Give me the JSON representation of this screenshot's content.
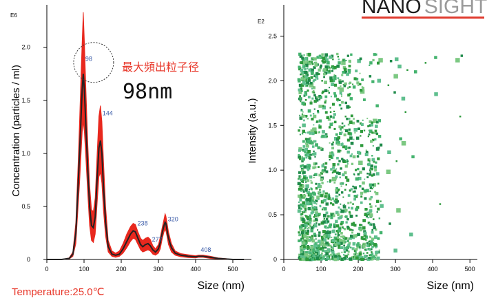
{
  "brand": {
    "part1": "NANO",
    "part2": "SIGHT",
    "line_color": "#e03a2e"
  },
  "temperature": "Temperature:25.0℃",
  "annotation": {
    "label": "最大頻出粒子径",
    "size": "98nm",
    "color": "#e8392c"
  },
  "chart_data": [
    {
      "type": "line",
      "exponent_label": "E6",
      "xlabel": "Size (nm)",
      "ylabel": "Concentration (particles / ml)",
      "xlim": [
        0,
        550
      ],
      "ylim": [
        0,
        2.4
      ],
      "x_ticks": [
        "0",
        "100",
        "200",
        "300",
        "400",
        "500"
      ],
      "y_ticks": [
        "0",
        "0.5",
        "1.0",
        "1.5",
        "2.0"
      ],
      "series": [
        {
          "role": "mean",
          "color": "#222222",
          "x": [
            0,
            40,
            60,
            70,
            78,
            84,
            88,
            92,
            95,
            98,
            101,
            105,
            110,
            115,
            120,
            125,
            130,
            135,
            140,
            144,
            148,
            152,
            158,
            165,
            175,
            185,
            195,
            205,
            215,
            225,
            232,
            238,
            245,
            252,
            258,
            265,
            272,
            278,
            285,
            292,
            300,
            305,
            310,
            315,
            318,
            320,
            323,
            327,
            335,
            345,
            360,
            380,
            400,
            408,
            420,
            440,
            460,
            480,
            500,
            530
          ],
          "y": [
            0,
            0,
            0.01,
            0.05,
            0.25,
            0.7,
            1.0,
            1.35,
            1.6,
            1.75,
            1.6,
            1.25,
            0.85,
            0.5,
            0.32,
            0.3,
            0.4,
            0.75,
            1.05,
            1.12,
            1.0,
            0.7,
            0.35,
            0.12,
            0.05,
            0.04,
            0.05,
            0.1,
            0.17,
            0.24,
            0.27,
            0.26,
            0.2,
            0.14,
            0.12,
            0.14,
            0.15,
            0.13,
            0.09,
            0.07,
            0.1,
            0.16,
            0.25,
            0.32,
            0.35,
            0.34,
            0.28,
            0.2,
            0.11,
            0.06,
            0.04,
            0.03,
            0.025,
            0.03,
            0.03,
            0.02,
            0.01,
            0.005,
            0,
            0
          ]
        },
        {
          "role": "error-band",
          "color": "#e8281e",
          "x": [
            0,
            40,
            60,
            70,
            78,
            84,
            88,
            92,
            95,
            98,
            101,
            105,
            110,
            115,
            120,
            125,
            130,
            135,
            140,
            144,
            148,
            152,
            158,
            165,
            175,
            185,
            195,
            205,
            215,
            225,
            232,
            238,
            245,
            252,
            258,
            265,
            272,
            278,
            285,
            292,
            300,
            305,
            310,
            315,
            318,
            320,
            323,
            327,
            335,
            345,
            360,
            380,
            400,
            408,
            420,
            440,
            460,
            480,
            500,
            530
          ],
          "upper": [
            0,
            0,
            0.015,
            0.07,
            0.35,
            0.9,
            1.3,
            1.75,
            2.05,
            2.33,
            2.05,
            1.6,
            1.1,
            0.7,
            0.47,
            0.45,
            0.58,
            0.98,
            1.35,
            1.45,
            1.3,
            0.95,
            0.5,
            0.18,
            0.08,
            0.06,
            0.08,
            0.15,
            0.24,
            0.31,
            0.34,
            0.33,
            0.26,
            0.2,
            0.18,
            0.2,
            0.21,
            0.19,
            0.13,
            0.1,
            0.14,
            0.21,
            0.3,
            0.38,
            0.43,
            0.41,
            0.35,
            0.26,
            0.15,
            0.08,
            0.055,
            0.045,
            0.035,
            0.04,
            0.04,
            0.03,
            0.015,
            0.008,
            0,
            0
          ],
          "lower": [
            0,
            0,
            0.005,
            0.03,
            0.15,
            0.5,
            0.72,
            1.0,
            1.2,
            1.3,
            1.2,
            0.95,
            0.62,
            0.32,
            0.18,
            0.16,
            0.24,
            0.52,
            0.78,
            0.82,
            0.72,
            0.47,
            0.22,
            0.07,
            0.03,
            0.02,
            0.03,
            0.06,
            0.11,
            0.17,
            0.2,
            0.19,
            0.14,
            0.09,
            0.07,
            0.08,
            0.09,
            0.08,
            0.05,
            0.04,
            0.06,
            0.1,
            0.19,
            0.26,
            0.28,
            0.27,
            0.22,
            0.14,
            0.07,
            0.04,
            0.025,
            0.018,
            0.015,
            0.02,
            0.02,
            0.01,
            0.005,
            0.002,
            0,
            0
          ]
        }
      ],
      "peak_labels": [
        {
          "label": "98",
          "x": 98,
          "y": 1.87
        },
        {
          "label": "144",
          "x": 144,
          "y": 1.36
        },
        {
          "label": "238",
          "x": 238,
          "y": 0.32
        },
        {
          "label": "277",
          "x": 277,
          "y": 0.17
        },
        {
          "label": "320",
          "x": 320,
          "y": 0.36
        },
        {
          "label": "408",
          "x": 408,
          "y": 0.07
        }
      ],
      "peak_label_color": "#3a5ba8"
    },
    {
      "type": "scatter",
      "exponent_label": "E2",
      "xlabel": "Size (nm)",
      "ylabel": "Intensity (a.u.)",
      "xlim": [
        0,
        520
      ],
      "ylim": [
        0,
        2.85
      ],
      "x_ticks": [
        "0",
        "100",
        "200",
        "300",
        "400",
        "500"
      ],
      "y_ticks": [
        "0",
        "0.5",
        "1.0",
        "1.5",
        "2.0",
        "2.5"
      ],
      "colors": [
        "#2e9a3c",
        "#44b36e",
        "#7cc882",
        "#1f8a4a",
        "#5fbf8e"
      ],
      "points": [
        [
          146,
          2.27
        ],
        [
          149,
          2.2
        ],
        [
          160,
          2.2
        ],
        [
          91,
          2.18
        ],
        [
          202,
          2.22
        ],
        [
          179,
          2.21
        ],
        [
          234,
          2.2
        ],
        [
          260,
          2.23
        ],
        [
          288,
          2.22
        ],
        [
          303,
          2.24
        ],
        [
          381,
          2.2
        ],
        [
          408,
          2.26
        ],
        [
          467,
          2.23
        ],
        [
          478,
          2.28
        ],
        [
          311,
          2.16
        ],
        [
          332,
          2.12
        ],
        [
          354,
          2.1
        ],
        [
          301,
          2.05
        ],
        [
          232,
          2.05
        ],
        [
          256,
          2.0
        ],
        [
          281,
          1.95
        ],
        [
          189,
          1.93
        ],
        [
          211,
          1.88
        ],
        [
          298,
          1.87
        ],
        [
          321,
          1.8
        ],
        [
          327,
          1.65
        ],
        [
          251,
          1.72
        ],
        [
          245,
          1.55
        ],
        [
          232,
          1.5
        ],
        [
          409,
          1.85
        ],
        [
          474,
          1.6
        ],
        [
          314,
          1.35
        ],
        [
          322,
          1.3
        ],
        [
          255,
          1.25
        ],
        [
          283,
          1.2
        ],
        [
          303,
          1.1
        ],
        [
          347,
          1.15
        ],
        [
          281,
          0.98
        ],
        [
          234,
          0.8
        ],
        [
          263,
          0.6
        ],
        [
          241,
          0.45
        ],
        [
          261,
          0.3
        ],
        [
          308,
          0.55
        ],
        [
          285,
          0.4
        ],
        [
          342,
          0.28
        ],
        [
          420,
          0.62
        ],
        [
          222,
          0.25
        ],
        [
          201,
          0.15
        ],
        [
          255,
          0.08
        ],
        [
          300,
          0.1
        ],
        [
          186,
          0.62
        ],
        [
          196,
          0.9
        ],
        [
          206,
          1.08
        ],
        [
          176,
          1.25
        ],
        [
          193,
          1.45
        ],
        [
          166,
          1.6
        ],
        [
          181,
          1.8
        ],
        [
          155,
          1.9
        ],
        [
          138,
          2.05
        ],
        [
          121,
          2.1
        ],
        [
          103,
          2.0
        ],
        [
          86,
          2.06
        ],
        [
          74,
          1.95
        ],
        [
          90,
          1.78
        ],
        [
          108,
          1.7
        ],
        [
          126,
          1.65
        ],
        [
          98,
          1.55
        ],
        [
          82,
          1.45
        ],
        [
          114,
          1.4
        ],
        [
          140,
          1.35
        ],
        [
          70,
          1.3
        ],
        [
          94,
          1.25
        ],
        [
          128,
          1.18
        ],
        [
          150,
          1.1
        ],
        [
          66,
          1.05
        ],
        [
          110,
          1.0
        ],
        [
          86,
          0.95
        ],
        [
          135,
          0.9
        ],
        [
          158,
          0.85
        ],
        [
          63,
          0.82
        ],
        [
          97,
          0.78
        ],
        [
          120,
          0.72
        ],
        [
          76,
          0.68
        ],
        [
          145,
          0.65
        ],
        [
          56,
          0.6
        ],
        [
          104,
          0.56
        ],
        [
          88,
          0.52
        ],
        [
          130,
          0.5
        ],
        [
          65,
          0.45
        ],
        [
          114,
          0.42
        ],
        [
          80,
          0.38
        ],
        [
          150,
          0.35
        ],
        [
          52,
          0.32
        ],
        [
          96,
          0.3
        ],
        [
          120,
          0.27
        ],
        [
          70,
          0.25
        ],
        [
          140,
          0.22
        ],
        [
          58,
          0.2
        ],
        [
          106,
          0.18
        ],
        [
          85,
          0.16
        ],
        [
          128,
          0.14
        ],
        [
          48,
          0.12
        ],
        [
          75,
          0.1
        ],
        [
          112,
          0.09
        ],
        [
          92,
          0.07
        ],
        [
          62,
          0.06
        ],
        [
          135,
          0.05
        ],
        [
          45,
          0.04
        ],
        [
          100,
          0.03
        ],
        [
          80,
          0.02
        ],
        [
          55,
          0.02
        ],
        [
          118,
          0.01
        ],
        [
          160,
          0.2
        ],
        [
          172,
          0.45
        ],
        [
          165,
          0.12
        ],
        [
          182,
          0.33
        ],
        [
          59,
          1.85
        ],
        [
          68,
          2.2
        ],
        [
          78,
          2.12
        ],
        [
          115,
          2.23
        ],
        [
          132,
          2.24
        ],
        [
          100,
          2.26
        ],
        [
          46,
          0.8
        ],
        [
          50,
          1.1
        ],
        [
          54,
          1.5
        ],
        [
          47,
          0.5
        ]
      ]
    }
  ]
}
